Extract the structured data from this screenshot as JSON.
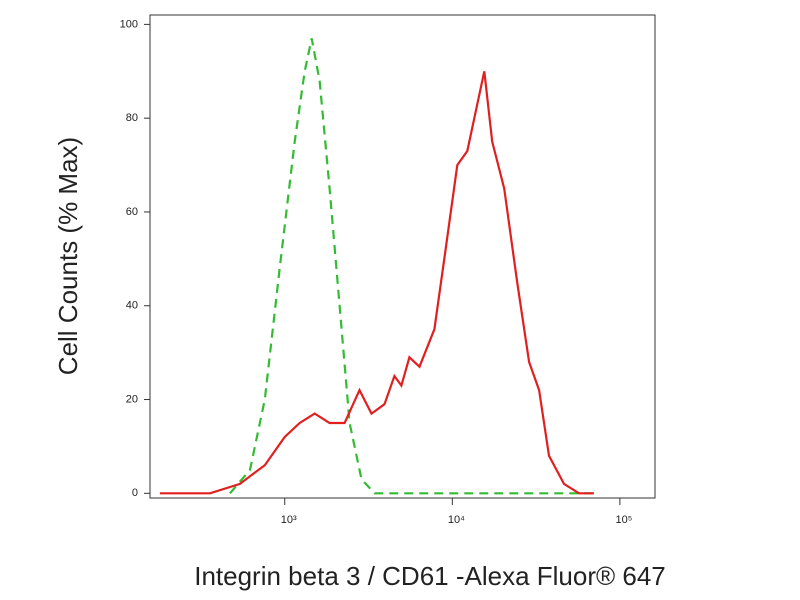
{
  "chart_data": {
    "type": "line",
    "x_label": "Integrin beta 3 / CD61 -Alexa Fluor® 647",
    "y_label": "Cell Counts (% Max)",
    "x_scale": "log",
    "xlim": [
      157,
      162000
    ],
    "xticks": [
      {
        "value": 1000,
        "label": "10³"
      },
      {
        "value": 10000,
        "label": "10⁴"
      },
      {
        "value": 100000,
        "label": "10⁵"
      }
    ],
    "ylim": [
      -1,
      102
    ],
    "yticks": [
      0,
      20,
      40,
      60,
      80,
      100
    ],
    "series": [
      {
        "color": "#33bb33",
        "dash": true,
        "x": [
          471,
          620,
          760,
          933,
          1147,
          1316,
          1448,
          1614,
          1853,
          2125,
          2438,
          2873,
          3436,
          70000
        ],
        "values": [
          0,
          5,
          20,
          48,
          75,
          90,
          97,
          88,
          65,
          40,
          15,
          3,
          0,
          0
        ]
      },
      {
        "color": "#e02020",
        "dash": false,
        "x": [
          180,
          358,
          540,
          760,
          1000,
          1228,
          1509,
          1853,
          2276,
          2795,
          3296,
          3936,
          4514,
          4969,
          5544,
          6366,
          7819,
          8960,
          10710,
          12280,
          13520,
          15510,
          17290,
          20400,
          24380,
          28710,
          32960,
          37760,
          46400,
          57030,
          70000
        ],
        "values": [
          0,
          0,
          2,
          6,
          12,
          15,
          17,
          15,
          15,
          22,
          17,
          19,
          25,
          23,
          29,
          27,
          35,
          50,
          70,
          73,
          80,
          90,
          75,
          65,
          45,
          28,
          22,
          8,
          2,
          0,
          0
        ]
      }
    ]
  }
}
